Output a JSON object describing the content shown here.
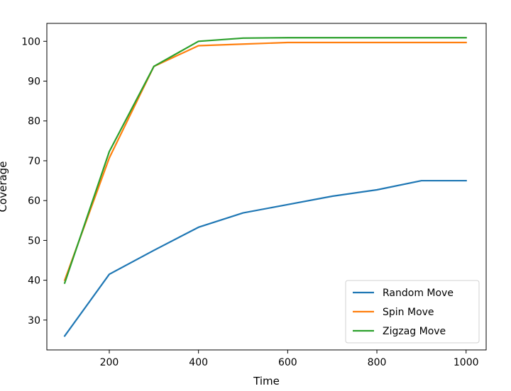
{
  "chart_data": {
    "type": "line",
    "title": "",
    "xlabel": "Time",
    "ylabel": "Coverage",
    "xlim": [
      60,
      1045
    ],
    "ylim": [
      22.5,
      104.5
    ],
    "xticks": [
      200,
      400,
      600,
      800,
      1000
    ],
    "yticks": [
      30,
      40,
      50,
      60,
      70,
      80,
      90,
      100
    ],
    "grid": false,
    "legend_position": "lower-right",
    "series": [
      {
        "name": "Random Move",
        "color": "#1f77b4",
        "x": [
          100,
          200,
          300,
          400,
          500,
          600,
          700,
          800,
          900,
          1000
        ],
        "y": [
          26.0,
          41.5,
          47.5,
          53.3,
          56.9,
          59.0,
          61.1,
          62.7,
          65.0,
          65.0
        ]
      },
      {
        "name": "Spin Move",
        "color": "#ff7f0e",
        "x": [
          100,
          200,
          300,
          400,
          500,
          600,
          700,
          800,
          900,
          1000
        ],
        "y": [
          40.0,
          70.7,
          93.7,
          98.9,
          99.3,
          99.7,
          99.7,
          99.7,
          99.7,
          99.7
        ]
      },
      {
        "name": "Zigzag Move",
        "color": "#2ca02c",
        "x": [
          100,
          200,
          300,
          400,
          500,
          600,
          700,
          800,
          900,
          1000
        ],
        "y": [
          39.3,
          72.3,
          93.7,
          100.0,
          100.8,
          100.9,
          100.9,
          100.9,
          100.9,
          100.9
        ]
      }
    ]
  }
}
